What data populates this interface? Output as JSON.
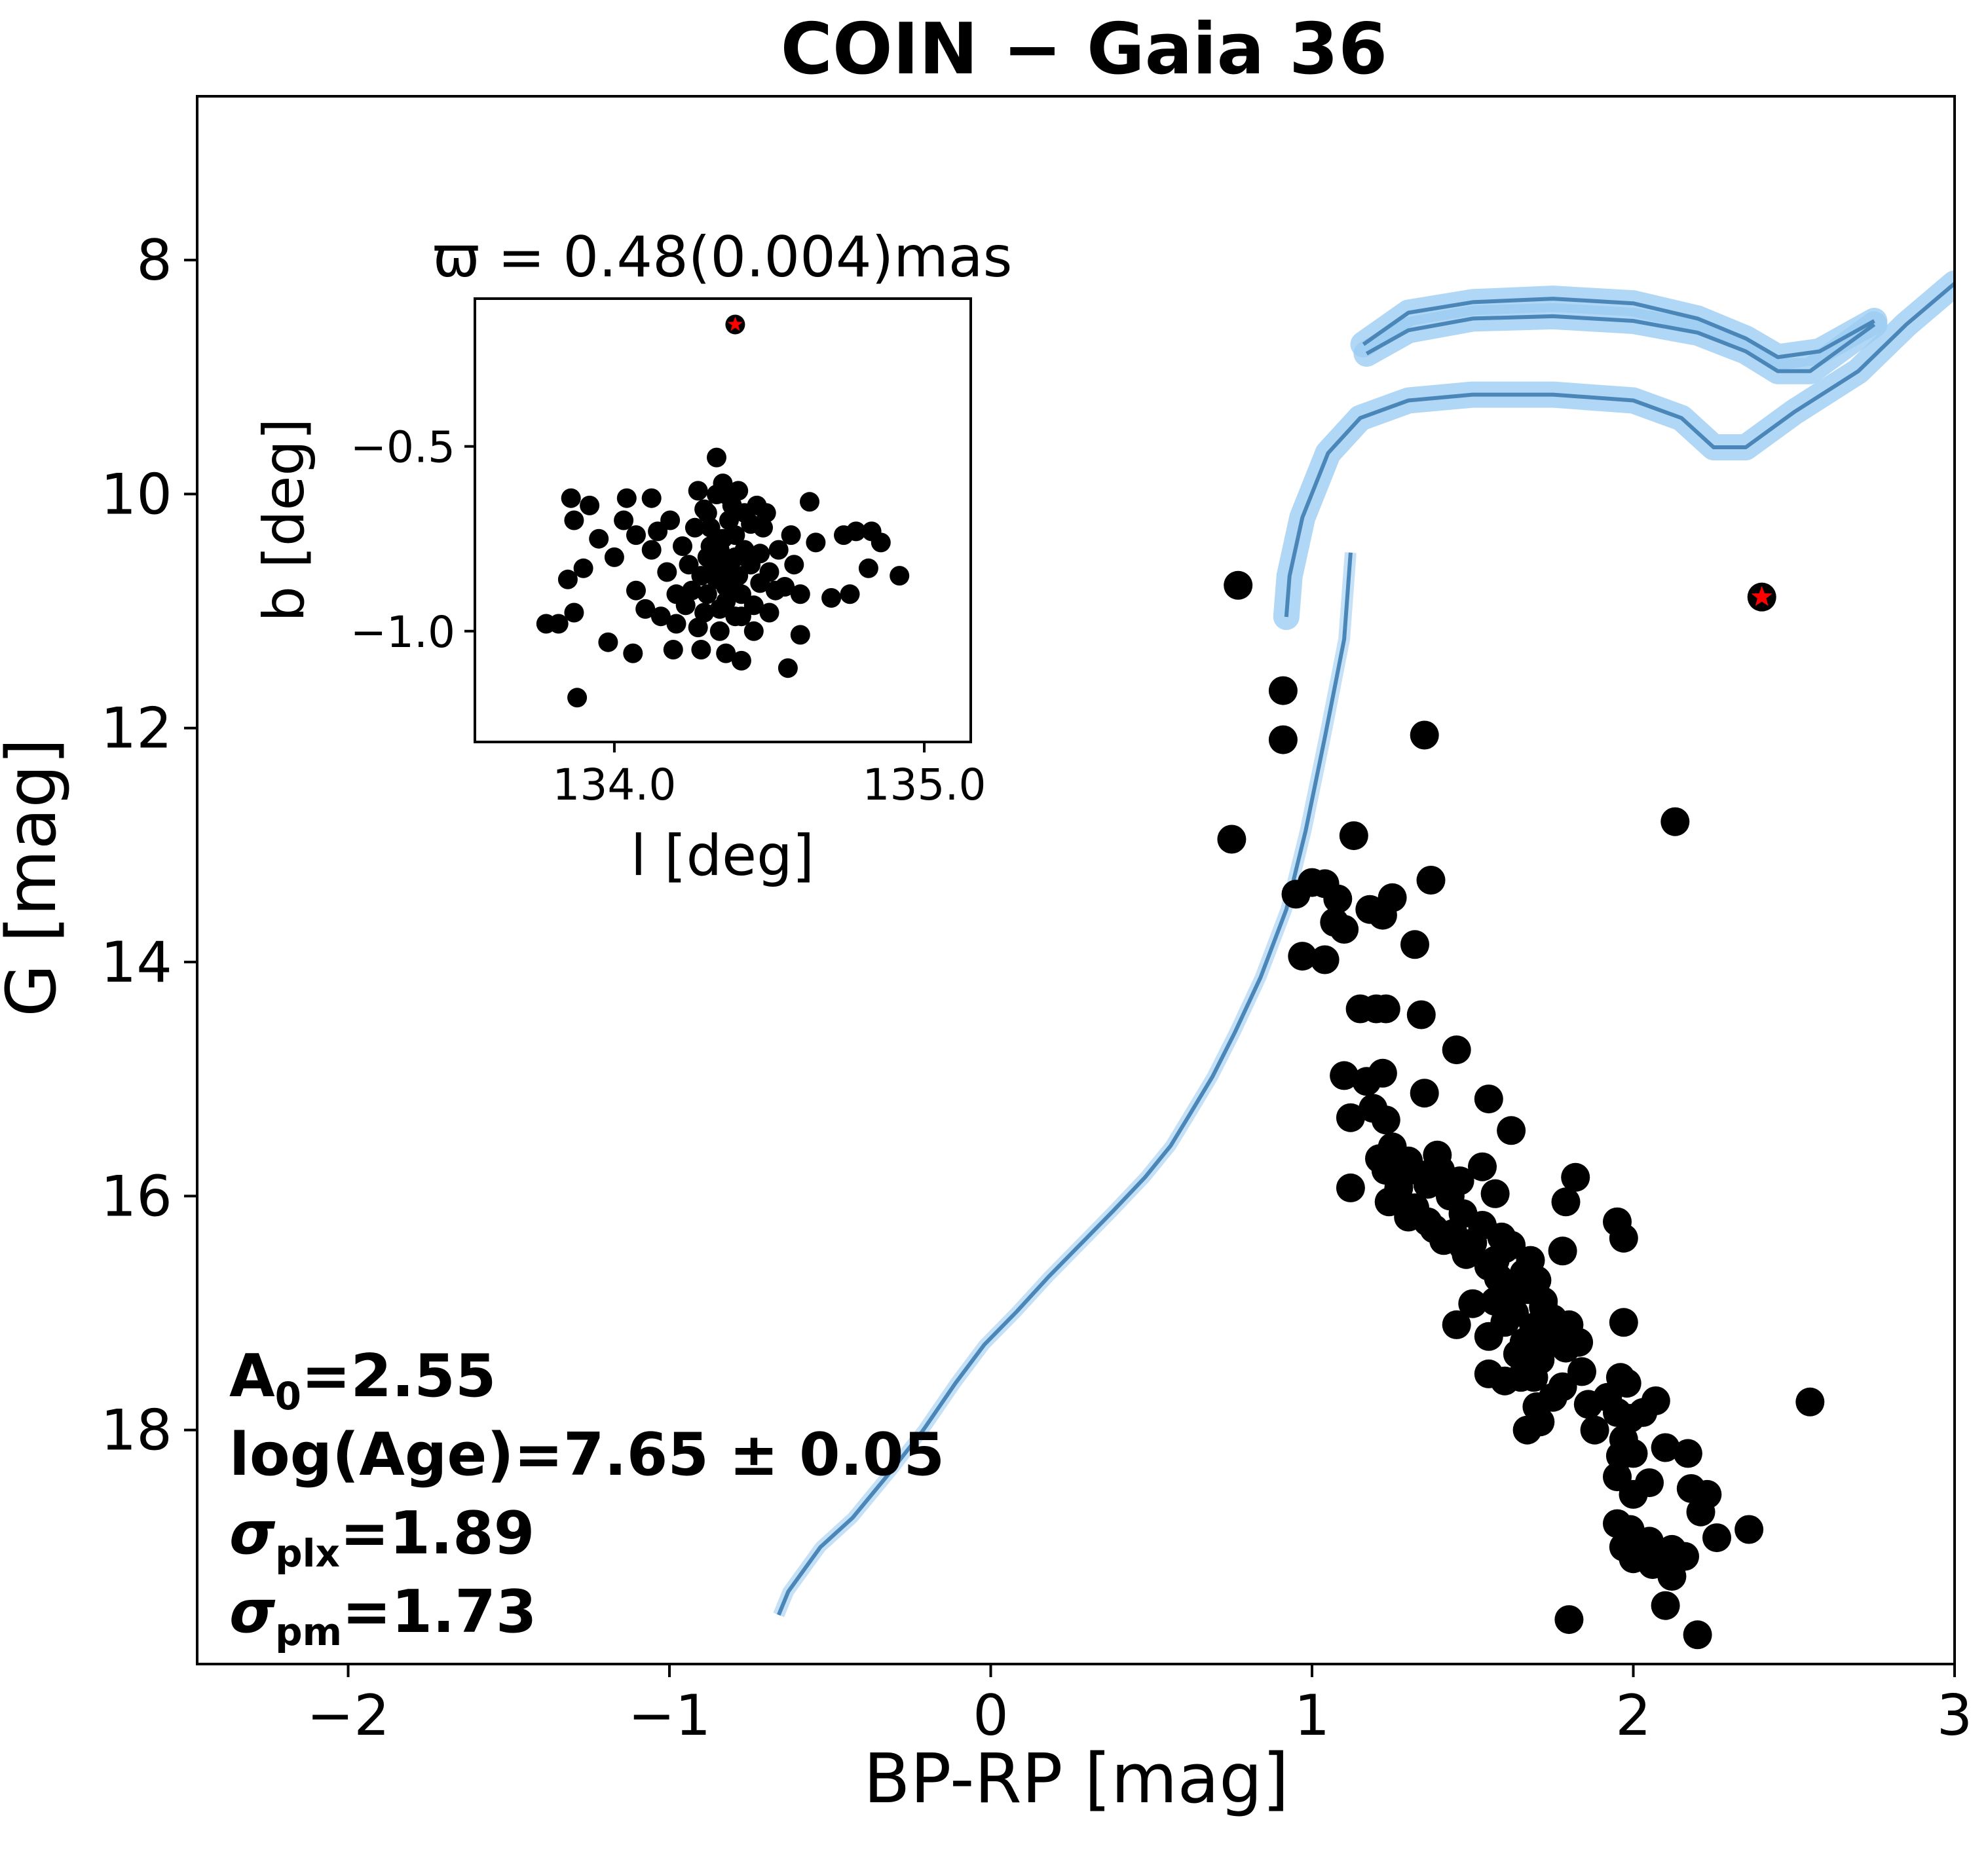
{
  "chart_data": {
    "type": "scatter",
    "title": "COIN − Gaia 36",
    "xlabel": "BP-RP [mag]",
    "ylabel": "G [mag]",
    "xlim": [
      -2.47,
      3.0
    ],
    "ylim": [
      20.0,
      6.6
    ],
    "y_inverted": true,
    "x_ticks": [
      -2,
      -1,
      0,
      1,
      2,
      3
    ],
    "x_tick_labels": [
      "−2",
      "−1",
      "0",
      "1",
      "2",
      "3"
    ],
    "y_ticks": [
      8,
      10,
      12,
      14,
      16,
      18
    ],
    "y_tick_labels": [
      "8",
      "10",
      "12",
      "14",
      "16",
      "18"
    ],
    "colors": {
      "members": "#000000",
      "isochrone": "#4a86b8",
      "band": "#9ccdf2",
      "star_marker": "#ff0000"
    },
    "members": [
      [
        0.77,
        10.78
      ],
      [
        0.75,
        12.95
      ],
      [
        0.91,
        11.68
      ],
      [
        0.91,
        12.1
      ],
      [
        1.35,
        12.06
      ],
      [
        1.13,
        12.92
      ],
      [
        2.13,
        12.8
      ],
      [
        2.55,
        17.76
      ],
      [
        2.36,
        18.85
      ],
      [
        1.8,
        19.62
      ],
      [
        2.2,
        19.75
      ],
      [
        2.1,
        19.5
      ],
      [
        0.95,
        13.42
      ],
      [
        1.0,
        13.32
      ],
      [
        1.04,
        13.33
      ],
      [
        1.07,
        13.66
      ],
      [
        1.1,
        13.72
      ],
      [
        1.08,
        13.46
      ],
      [
        1.18,
        13.55
      ],
      [
        1.25,
        13.45
      ],
      [
        1.22,
        13.6
      ],
      [
        1.32,
        13.85
      ],
      [
        1.37,
        13.3
      ],
      [
        0.97,
        13.95
      ],
      [
        1.04,
        13.98
      ],
      [
        1.15,
        14.4
      ],
      [
        1.2,
        14.4
      ],
      [
        1.23,
        14.4
      ],
      [
        1.34,
        14.45
      ],
      [
        1.45,
        14.75
      ],
      [
        1.1,
        14.97
      ],
      [
        1.17,
        15.02
      ],
      [
        1.22,
        14.95
      ],
      [
        1.35,
        15.12
      ],
      [
        1.12,
        15.33
      ],
      [
        1.19,
        15.25
      ],
      [
        1.23,
        15.35
      ],
      [
        1.55,
        15.17
      ],
      [
        1.62,
        15.44
      ],
      [
        1.21,
        15.68
      ],
      [
        1.25,
        15.58
      ],
      [
        1.3,
        15.7
      ],
      [
        1.39,
        15.65
      ],
      [
        1.35,
        15.82
      ],
      [
        1.27,
        15.93
      ],
      [
        1.24,
        16.05
      ],
      [
        1.32,
        16.1
      ],
      [
        1.4,
        15.78
      ],
      [
        1.43,
        16.0
      ],
      [
        1.53,
        15.75
      ],
      [
        1.57,
        15.98
      ],
      [
        1.12,
        15.93
      ],
      [
        1.82,
        15.84
      ],
      [
        1.79,
        16.05
      ],
      [
        1.95,
        16.22
      ],
      [
        1.38,
        16.28
      ],
      [
        1.44,
        16.32
      ],
      [
        1.5,
        16.4
      ],
      [
        1.48,
        16.5
      ],
      [
        1.55,
        16.6
      ],
      [
        1.6,
        16.45
      ],
      [
        1.62,
        16.42
      ],
      [
        1.68,
        16.55
      ],
      [
        1.58,
        16.7
      ],
      [
        1.67,
        16.8
      ],
      [
        1.72,
        16.9
      ],
      [
        1.63,
        17.0
      ],
      [
        1.6,
        17.08
      ],
      [
        1.69,
        17.12
      ],
      [
        1.73,
        17.22
      ],
      [
        1.78,
        16.47
      ],
      [
        1.97,
        16.36
      ],
      [
        1.5,
        16.92
      ],
      [
        1.55,
        17.2
      ],
      [
        1.64,
        17.35
      ],
      [
        1.71,
        17.4
      ],
      [
        1.79,
        17.3
      ],
      [
        1.84,
        17.5
      ],
      [
        1.69,
        17.55
      ],
      [
        1.6,
        17.58
      ],
      [
        1.78,
        17.63
      ],
      [
        1.86,
        17.78
      ],
      [
        1.92,
        17.72
      ],
      [
        1.95,
        17.85
      ],
      [
        1.75,
        17.72
      ],
      [
        1.71,
        17.93
      ],
      [
        1.67,
        18.0
      ],
      [
        1.7,
        17.8
      ],
      [
        1.88,
        18.0
      ],
      [
        1.97,
        18.08
      ],
      [
        1.99,
        17.9
      ],
      [
        2.07,
        17.75
      ],
      [
        2.03,
        17.85
      ],
      [
        1.96,
        18.22
      ],
      [
        2.0,
        18.2
      ],
      [
        2.1,
        18.15
      ],
      [
        2.17,
        18.2
      ],
      [
        2.05,
        18.45
      ],
      [
        1.95,
        18.4
      ],
      [
        2.0,
        18.55
      ],
      [
        2.18,
        18.5
      ],
      [
        2.23,
        18.55
      ],
      [
        2.21,
        18.7
      ],
      [
        1.99,
        18.85
      ],
      [
        1.95,
        18.8
      ],
      [
        2.05,
        18.95
      ],
      [
        2.02,
        19.0
      ],
      [
        2.06,
        19.15
      ],
      [
        2.12,
        19.25
      ],
      [
        2.16,
        19.08
      ],
      [
        2.26,
        18.92
      ],
      [
        1.97,
        19.0
      ],
      [
        2.12,
        19.02
      ],
      [
        2.0,
        19.1
      ],
      [
        1.98,
        17.6
      ],
      [
        1.96,
        17.55
      ],
      [
        1.45,
        17.1
      ],
      [
        1.55,
        17.52
      ],
      [
        1.65,
        17.55
      ],
      [
        1.83,
        17.25
      ],
      [
        1.8,
        17.1
      ],
      [
        1.75,
        17.05
      ],
      [
        1.72,
        16.95
      ],
      [
        1.97,
        17.08
      ],
      [
        1.47,
        16.43
      ],
      [
        1.57,
        16.55
      ],
      [
        1.41,
        16.38
      ],
      [
        1.36,
        16.22
      ],
      [
        1.3,
        16.18
      ],
      [
        1.23,
        15.78
      ],
      [
        1.28,
        15.82
      ],
      [
        1.36,
        15.9
      ],
      [
        1.46,
        15.87
      ],
      [
        1.47,
        16.15
      ],
      [
        1.53,
        16.25
      ],
      [
        1.59,
        16.35
      ],
      [
        1.66,
        16.66
      ],
      [
        1.7,
        16.72
      ],
      [
        1.62,
        16.85
      ],
      [
        1.57,
        16.9
      ],
      [
        1.66,
        17.25
      ]
    ],
    "red_star_member": [
      2.4,
      10.88
    ],
    "isochrone_main": [
      [
        1.22,
        19.58
      ],
      [
        1.25,
        19.38
      ],
      [
        1.35,
        19.0
      ],
      [
        1.45,
        18.75
      ],
      [
        1.57,
        18.35
      ],
      [
        1.67,
        18.0
      ],
      [
        1.77,
        17.6
      ],
      [
        1.86,
        17.27
      ],
      [
        1.96,
        16.99
      ],
      [
        2.06,
        16.69
      ],
      [
        2.16,
        16.41
      ],
      [
        2.26,
        16.13
      ],
      [
        2.36,
        15.84
      ],
      [
        2.44,
        15.57
      ],
      [
        2.5,
        15.3
      ],
      [
        2.57,
        14.98
      ],
      [
        2.64,
        14.6
      ],
      [
        2.72,
        14.13
      ],
      [
        2.8,
        13.55
      ],
      [
        2.86,
        12.88
      ],
      [
        2.92,
        12.08
      ],
      [
        2.98,
        11.24
      ],
      [
        3.0,
        10.5
      ]
    ],
    "isochrone_x_offset": -1.88,
    "isochrone_band": [
      [
        0.92,
        11.05
      ],
      [
        0.93,
        10.7
      ],
      [
        0.97,
        10.2
      ],
      [
        1.05,
        9.65
      ],
      [
        1.15,
        9.35
      ],
      [
        1.3,
        9.2
      ],
      [
        1.5,
        9.15
      ],
      [
        1.75,
        9.15
      ],
      [
        2.0,
        9.2
      ],
      [
        2.15,
        9.35
      ],
      [
        2.25,
        9.6
      ],
      [
        2.35,
        9.6
      ],
      [
        2.5,
        9.3
      ],
      [
        2.7,
        8.95
      ],
      [
        2.85,
        8.55
      ],
      [
        3.0,
        8.2
      ]
    ],
    "isochrone_upper": [
      [
        1.17,
        8.8
      ],
      [
        1.3,
        8.6
      ],
      [
        1.5,
        8.5
      ],
      [
        1.75,
        8.48
      ],
      [
        2.0,
        8.52
      ],
      [
        2.2,
        8.62
      ],
      [
        2.35,
        8.78
      ],
      [
        2.45,
        8.95
      ],
      [
        2.55,
        8.95
      ],
      [
        2.75,
        8.55
      ]
    ],
    "isochrone_upper2": [
      [
        1.16,
        8.72
      ],
      [
        1.3,
        8.45
      ],
      [
        1.5,
        8.36
      ],
      [
        1.75,
        8.33
      ],
      [
        2.0,
        8.37
      ],
      [
        2.2,
        8.5
      ],
      [
        2.35,
        8.67
      ],
      [
        2.45,
        8.83
      ],
      [
        2.58,
        8.78
      ],
      [
        2.75,
        8.52
      ]
    ],
    "inset": {
      "title": "ϖ = 0.48(0.004)mas",
      "xlabel": "l [deg]",
      "ylabel": "b [deg]",
      "xlim": [
        133.55,
        135.15
      ],
      "ylim": [
        -1.3,
        -0.1
      ],
      "x_ticks": [
        134.0,
        135.0
      ],
      "x_tick_labels": [
        "134.0",
        "135.0"
      ],
      "y_ticks": [
        -0.5,
        -1.0
      ],
      "y_tick_labels": [
        "−0.5",
        "−1.0"
      ],
      "red_star": [
        134.39,
        -0.17
      ],
      "points": [
        [
          134.33,
          -0.53
        ],
        [
          134.36,
          -0.63
        ],
        [
          134.42,
          -0.68
        ],
        [
          134.31,
          -0.72
        ],
        [
          134.39,
          -0.74
        ],
        [
          134.34,
          -0.78
        ],
        [
          134.42,
          -0.78
        ],
        [
          134.36,
          -0.82
        ],
        [
          134.3,
          -0.8
        ],
        [
          134.44,
          -0.82
        ],
        [
          134.38,
          -0.86
        ],
        [
          134.33,
          -0.86
        ],
        [
          134.41,
          -0.9
        ],
        [
          134.36,
          -0.92
        ],
        [
          134.3,
          -0.9
        ],
        [
          134.45,
          -0.93
        ],
        [
          134.39,
          -0.96
        ],
        [
          134.34,
          -0.94
        ],
        [
          134.28,
          -0.85
        ],
        [
          134.24,
          -0.82
        ],
        [
          134.2,
          -0.9
        ],
        [
          134.5,
          -0.84
        ],
        [
          134.53,
          -0.78
        ],
        [
          134.57,
          -0.74
        ],
        [
          134.48,
          -0.72
        ],
        [
          134.26,
          -0.72
        ],
        [
          134.22,
          -0.77
        ],
        [
          134.17,
          -0.84
        ],
        [
          134.12,
          -0.78
        ],
        [
          134.07,
          -0.74
        ],
        [
          134.03,
          -0.7
        ],
        [
          134.0,
          -0.8
        ],
        [
          133.95,
          -0.75
        ],
        [
          133.87,
          -0.7
        ],
        [
          133.9,
          -0.83
        ],
        [
          133.85,
          -0.86
        ],
        [
          133.87,
          -0.95
        ],
        [
          133.78,
          -0.98
        ],
        [
          133.82,
          -0.98
        ],
        [
          133.98,
          -1.03
        ],
        [
          134.06,
          -1.06
        ],
        [
          134.19,
          -1.05
        ],
        [
          134.28,
          -1.05
        ],
        [
          134.36,
          -1.06
        ],
        [
          134.41,
          -1.08
        ],
        [
          134.56,
          -1.1
        ],
        [
          134.6,
          -1.01
        ],
        [
          133.88,
          -1.18
        ],
        [
          133.86,
          -0.64
        ],
        [
          133.92,
          -0.66
        ],
        [
          134.04,
          -0.64
        ],
        [
          134.12,
          -0.64
        ],
        [
          134.29,
          -0.67
        ],
        [
          134.35,
          -0.6
        ],
        [
          134.63,
          -0.65
        ],
        [
          134.65,
          -0.76
        ],
        [
          134.74,
          -0.74
        ],
        [
          134.78,
          -0.73
        ],
        [
          134.83,
          -0.73
        ],
        [
          134.86,
          -0.76
        ],
        [
          134.82,
          -0.83
        ],
        [
          134.76,
          -0.9
        ],
        [
          134.92,
          -0.85
        ],
        [
          134.7,
          -0.91
        ],
        [
          134.6,
          -0.9
        ],
        [
          134.5,
          -0.95
        ],
        [
          134.45,
          -1.0
        ],
        [
          134.34,
          -1.0
        ],
        [
          134.27,
          -0.99
        ],
        [
          134.2,
          -0.98
        ],
        [
          134.15,
          -0.96
        ],
        [
          134.1,
          -0.94
        ],
        [
          134.07,
          -0.89
        ],
        [
          134.14,
          -0.73
        ],
        [
          134.18,
          -0.7
        ],
        [
          134.4,
          -0.62
        ],
        [
          134.46,
          -0.66
        ],
        [
          134.27,
          -0.62
        ],
        [
          134.33,
          -0.63
        ],
        [
          134.37,
          -0.7
        ],
        [
          134.44,
          -0.71
        ],
        [
          134.39,
          -0.8
        ],
        [
          134.32,
          -0.83
        ],
        [
          134.36,
          -0.88
        ],
        [
          134.4,
          -0.85
        ],
        [
          134.47,
          -0.87
        ],
        [
          134.52,
          -0.89
        ],
        [
          134.25,
          -0.89
        ],
        [
          134.29,
          -0.95
        ],
        [
          134.23,
          -0.93
        ],
        [
          134.41,
          -0.96
        ],
        [
          134.35,
          -0.75
        ],
        [
          134.31,
          -0.77
        ],
        [
          134.47,
          -0.79
        ],
        [
          134.58,
          -0.82
        ],
        [
          134.55,
          -0.88
        ],
        [
          134.3,
          -0.68
        ],
        [
          134.38,
          -0.66
        ],
        [
          134.49,
          -0.68
        ]
      ]
    },
    "annotations": {
      "a0_sym": "A",
      "a0_sub": "0",
      "a0_val": "=2.55",
      "age_text": "log(Age)=7.65 ± 0.05",
      "plx_sym": "σ",
      "plx_sub": "plx",
      "plx_val": "=1.89",
      "pm_sym": "σ",
      "pm_sub": "pm",
      "pm_val": "=1.73"
    }
  }
}
